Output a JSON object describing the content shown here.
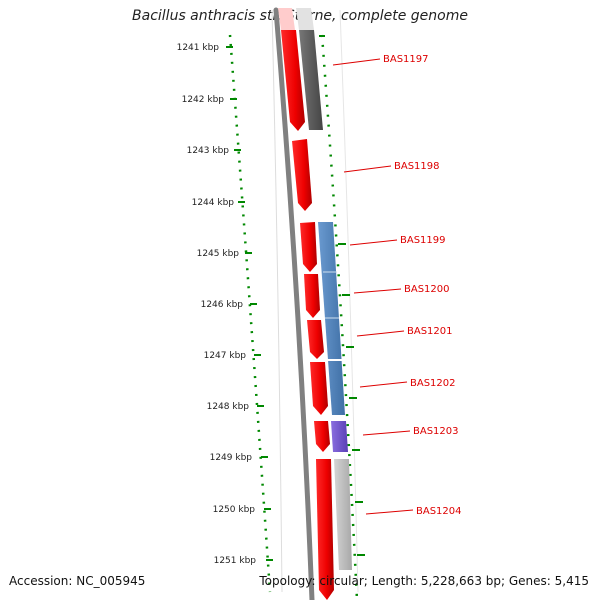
{
  "title": "Bacillus anthracis str. Sterne, complete genome",
  "accession": "Accession: NC_005945",
  "stats": "Topology: circular; Length: 5,228,663 bp; Genes: 5,415",
  "coordinate_ticks": [
    "1241 kbp",
    "1242 kbp",
    "1243 kbp",
    "1244 kbp",
    "1245 kbp",
    "1246 kbp",
    "1247 kbp",
    "1248 kbp",
    "1249 kbp",
    "1250 kbp",
    "1251 kbp"
  ],
  "gene_labels": [
    "BAS1197",
    "BAS1198",
    "BAS1199",
    "BAS1200",
    "BAS1201",
    "BAS1202",
    "BAS1203",
    "BAS1204"
  ],
  "colors": {
    "cds_strand": "#ff0000",
    "label": "#dd0000",
    "tick": "#008800",
    "backbone": "#808080",
    "feature_gray": "#5a5a5a",
    "feature_blue": "#4f82b8",
    "feature_purple": "#7055cc",
    "feature_lightgray": "#c0c0c0"
  }
}
